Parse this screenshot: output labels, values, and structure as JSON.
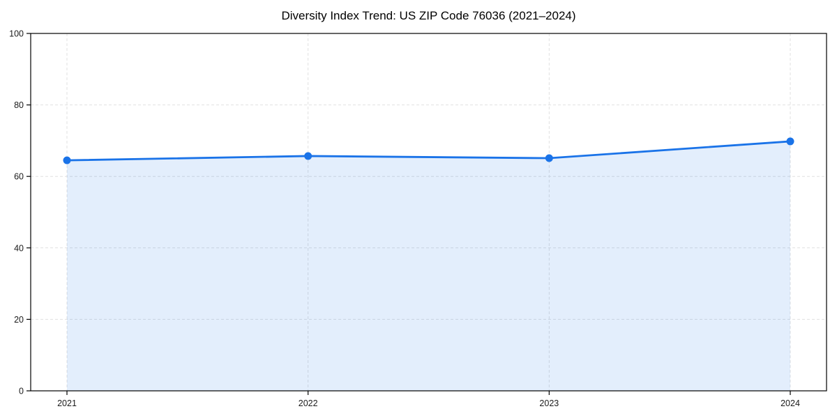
{
  "chart_data": {
    "type": "line",
    "title": "Diversity Index Trend: US ZIP Code 76036 (2021–2024)",
    "x": [
      "2021",
      "2022",
      "2023",
      "2024"
    ],
    "series": [
      {
        "name": "Diversity Index",
        "values": [
          64.5,
          65.7,
          65.1,
          69.8
        ]
      }
    ],
    "xlabel": "",
    "ylabel": "",
    "ylim": [
      0,
      100
    ],
    "yticks": [
      0,
      20,
      40,
      60,
      80,
      100
    ],
    "grid": "dashed-both-axes",
    "legend_position": "none",
    "area_fill_to_zero": true,
    "style": {
      "line_color": "#1a73e8",
      "marker_color": "#1a73e8",
      "area_fill_color": "rgba(26,115,232,0.12)",
      "grid_color": "#e0e0e0",
      "axis_color": "#000000",
      "tick_text_color": "#1a1a1a"
    }
  }
}
